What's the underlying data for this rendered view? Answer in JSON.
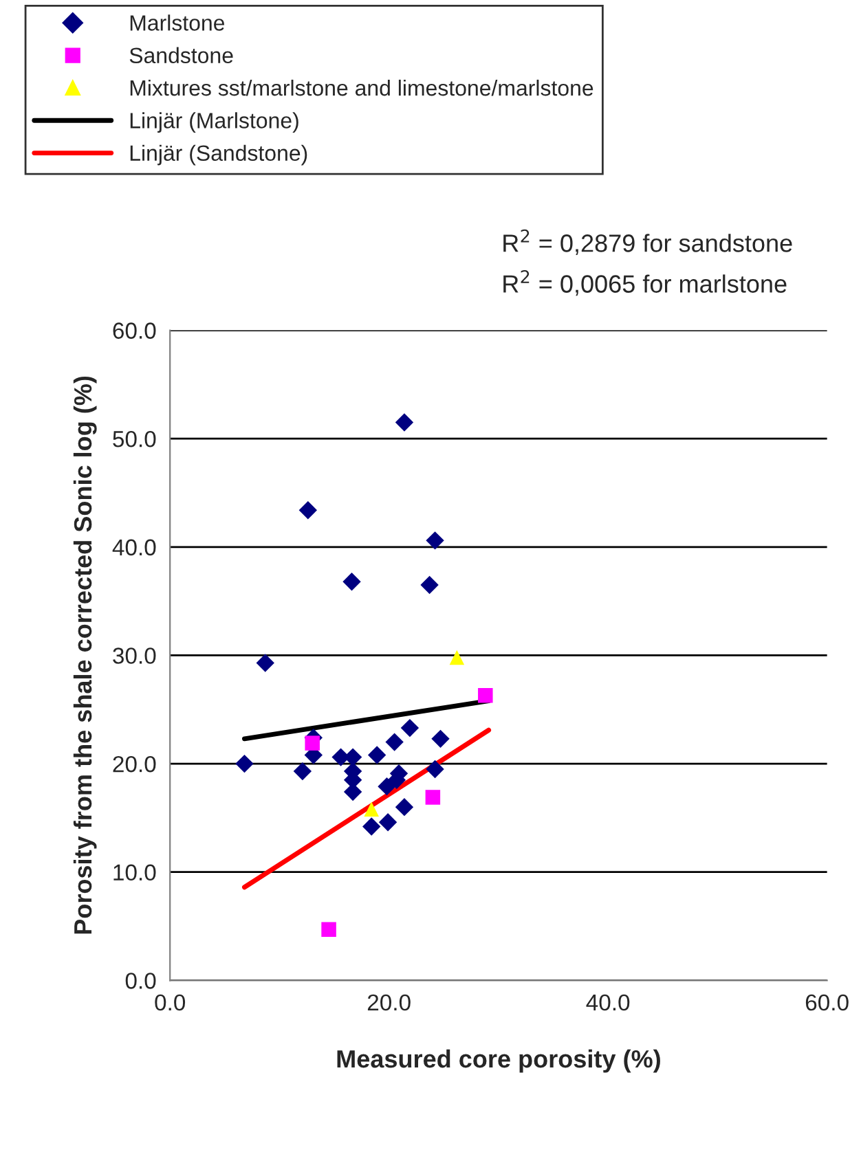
{
  "chart_data": {
    "type": "scatter",
    "xlabel": "Measured core porosity (%)",
    "ylabel": "Porosity from the shale corrected Sonic log (%)",
    "annotations": [
      "R$^{2}$ = 0,2879 for sandstone",
      "R$^{2}$ = 0,0065 for marlstone"
    ],
    "xlim": [
      0,
      60
    ],
    "ylim": [
      0,
      60
    ],
    "xticks": [
      {
        "value": 0,
        "label": "0.0"
      },
      {
        "value": 20,
        "label": "20.0"
      },
      {
        "value": 40,
        "label": "40.0"
      },
      {
        "value": 60,
        "label": "60.0"
      }
    ],
    "yticks": [
      {
        "value": 0,
        "label": "0.0"
      },
      {
        "value": 10,
        "label": "10.0"
      },
      {
        "value": 20,
        "label": "20.0"
      },
      {
        "value": 30,
        "label": "30.0"
      },
      {
        "value": 40,
        "label": "40.0"
      },
      {
        "value": 50,
        "label": "50.0"
      },
      {
        "value": 60,
        "label": "60.0"
      }
    ],
    "grid": "y",
    "legend": "top left",
    "series": [
      {
        "name": "Marlstone",
        "color": "#000080",
        "marker": "diamond",
        "x": [
          6.8,
          12.1,
          13.1,
          13.1,
          15.6,
          16.7,
          16.7,
          16.7,
          16.7,
          18.9,
          20.5,
          21.9,
          20.9,
          19.8,
          20.7,
          18.4,
          19.9,
          21.4,
          24.7,
          24.2,
          8.7,
          21.4,
          12.6,
          24.2,
          16.6,
          23.7
        ],
        "values": [
          20.0,
          19.3,
          20.8,
          22.4,
          20.6,
          20.6,
          19.3,
          18.5,
          17.4,
          20.8,
          22.0,
          23.3,
          19.1,
          17.9,
          18.5,
          14.2,
          14.6,
          16.0,
          22.3,
          19.5,
          29.3,
          51.5,
          43.4,
          40.6,
          36.8,
          36.5
        ]
      },
      {
        "name": "Sandstone",
        "color": "#ff00ff",
        "marker": "square",
        "x": [
          13.0,
          24.0,
          14.5,
          28.8
        ],
        "values": [
          21.9,
          16.9,
          4.7,
          26.3
        ]
      },
      {
        "name": "Mixtures sst/marlstone and limestone/marlstone",
        "color": "#ffff00",
        "marker": "triangle",
        "x": [
          18.4,
          26.2
        ],
        "values": [
          15.8,
          29.8
        ]
      },
      {
        "name": "Linjär (Marlstone)",
        "type": "line",
        "color": "#000000",
        "marker": "none",
        "x": [
          6.8,
          29.1
        ],
        "values": [
          22.3,
          25.8
        ]
      },
      {
        "name": "Linjär (Sandstone)",
        "type": "line",
        "color": "#ff0000",
        "marker": "none",
        "x": [
          6.8,
          29.1
        ],
        "values": [
          8.6,
          23.1
        ]
      }
    ]
  }
}
